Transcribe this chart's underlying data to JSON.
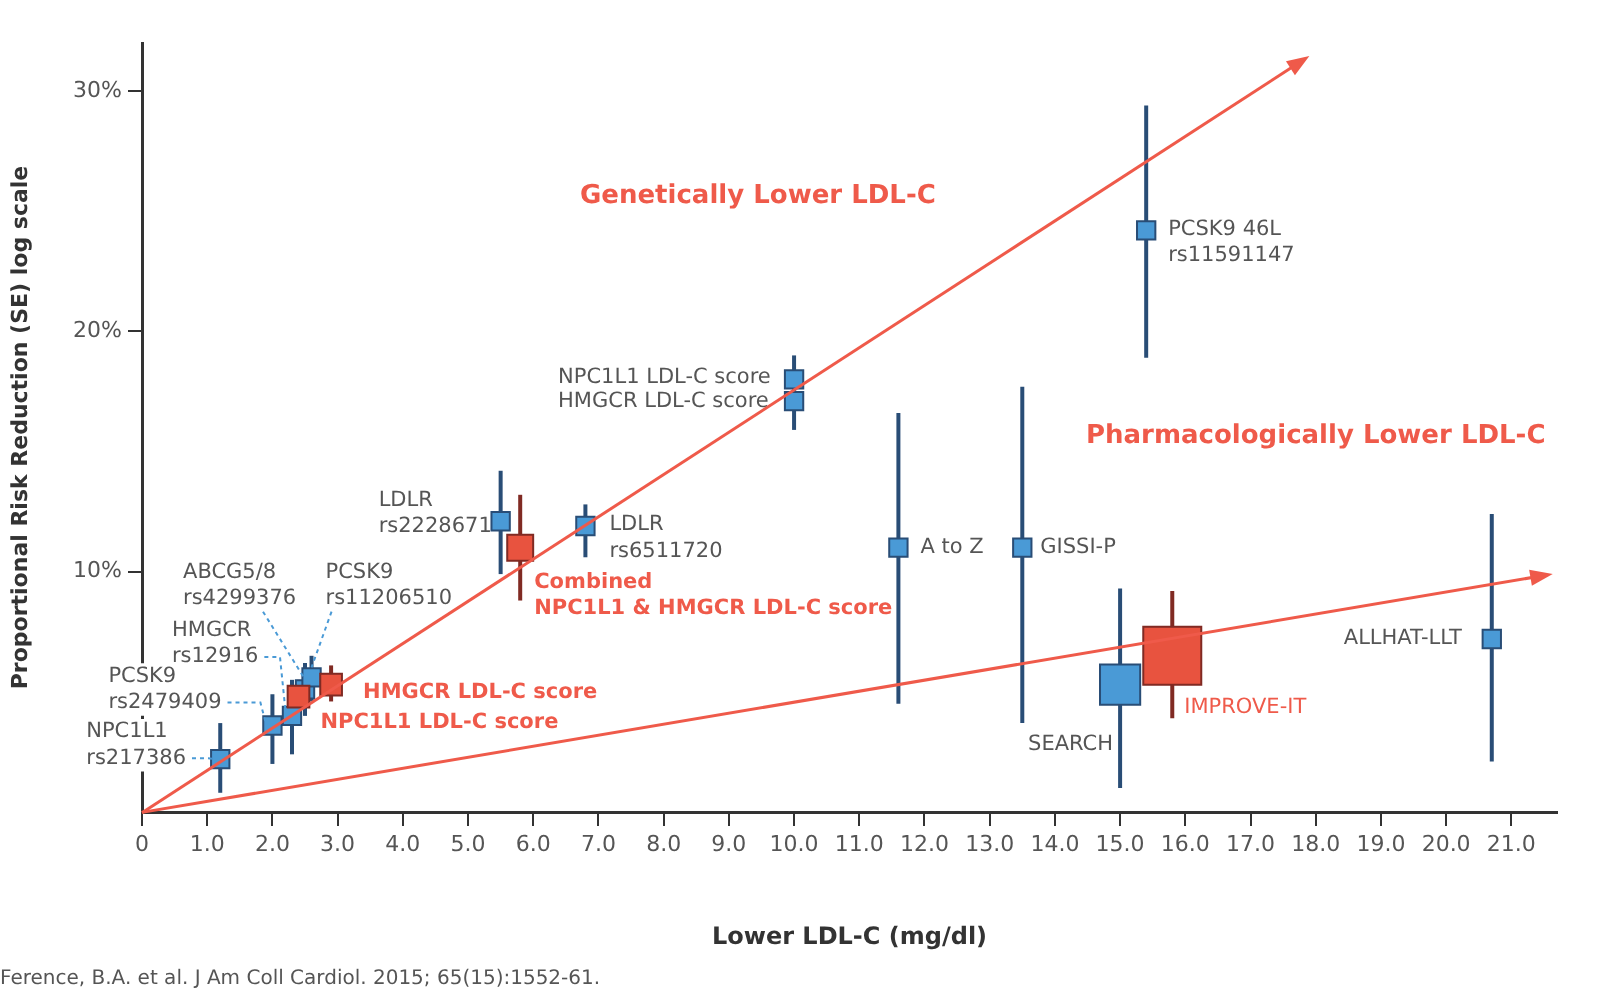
{
  "chart_data": {
    "type": "scatter",
    "xlabel": "Lower LDL-C (mg/dl)",
    "ylabel": "Proportional Risk Reduction (SE) log scale",
    "xlim": [
      0,
      21.7
    ],
    "ylim": [
      0,
      32
    ],
    "xticks": [
      0,
      {
        "value": 1,
        "label": "1.0"
      },
      {
        "value": 2,
        "label": "2.0"
      },
      {
        "value": 3,
        "label": "3.0"
      },
      {
        "value": 4,
        "label": "4.0"
      },
      {
        "value": 5,
        "label": "5.0"
      },
      {
        "value": 6,
        "label": "6.0"
      },
      {
        "value": 7,
        "label": "7.0"
      },
      {
        "value": 8,
        "label": "8.0"
      },
      {
        "value": 9,
        "label": "9.0"
      },
      {
        "value": 10,
        "label": "10.0"
      },
      {
        "value": 11,
        "label": "11.0"
      },
      {
        "value": 12,
        "label": "12.0"
      },
      {
        "value": 13,
        "label": "13.0"
      },
      {
        "value": 14,
        "label": "14.0"
      },
      {
        "value": 15,
        "label": "15.0"
      },
      {
        "value": 16,
        "label": "16.0"
      },
      {
        "value": 17,
        "label": "17.0"
      },
      {
        "value": 18,
        "label": "18.0"
      },
      {
        "value": 19,
        "label": "19.0"
      },
      {
        "value": 20,
        "label": "20.0"
      },
      {
        "value": 21,
        "label": "21.0"
      }
    ],
    "yticks": [
      {
        "value": 10,
        "label": "10%"
      },
      {
        "value": 20,
        "label": "20%"
      },
      {
        "value": 30,
        "label": "30%"
      }
    ],
    "grid": false,
    "legend": false,
    "marker": "square",
    "series": [
      {
        "color": "#4a9ad6",
        "x": [
          1.2,
          2.0,
          2.3,
          2.5,
          2.6,
          5.5,
          6.8,
          10.0,
          10.0,
          11.6,
          13.5,
          15.4,
          15.0,
          20.7
        ],
        "values": [
          2.2,
          3.6,
          4.0,
          5.1,
          5.6,
          12.1,
          11.9,
          18.0,
          17.1,
          11.0,
          11.0,
          24.2,
          5.3,
          7.2
        ],
        "errors": [
          [
            0.8,
            3.7
          ],
          [
            2.0,
            4.9
          ],
          [
            2.4,
            5.5
          ],
          [
            4.0,
            6.2
          ],
          [
            4.6,
            6.5
          ],
          [
            9.9,
            14.2
          ],
          [
            10.6,
            12.8
          ],
          [
            17.3,
            19.0
          ],
          [
            15.9,
            17.8
          ],
          [
            4.5,
            16.6
          ],
          [
            3.7,
            17.7
          ],
          [
            18.9,
            29.4
          ],
          [
            1.0,
            9.3
          ],
          [
            2.1,
            12.4
          ]
        ],
        "sizes": [
          0.1,
          0.1,
          0.1,
          0.1,
          0.1,
          0.1,
          0.1,
          0.1,
          0.1,
          0.1,
          0.1,
          0.1,
          0.48,
          0.1
        ]
      },
      {
        "color": "#e8533f",
        "x": [
          2.4,
          2.9,
          5.8,
          15.8
        ],
        "values": [
          4.8,
          5.3,
          11.0,
          6.5
        ],
        "errors": [
          [
            4.4,
            5.5
          ],
          [
            4.6,
            6.1
          ],
          [
            8.8,
            13.2
          ],
          [
            3.9,
            9.2
          ]
        ],
        "sizes": [
          0.14,
          0.14,
          0.2,
          1
        ]
      }
    ],
    "annotations": [
      "Genetically Lower LDL-C",
      "Pharmacologically Lower LDL-C",
      {
        "text": "PCSK9 46L\nrs11591147",
        "x": 15.4,
        "y": 24.2
      },
      {
        "text": "NPC1L1 LDL-C score",
        "x": 10.0,
        "y": 18.0
      },
      {
        "text": "HMGCR LDL-C score",
        "x": 10.0,
        "y": 17.1
      },
      {
        "text": "LDLR\nrs2228671",
        "x": 5.5,
        "y": 12.1
      },
      {
        "text": "LDLR\nrs6511720",
        "x": 6.8,
        "y": 11.9
      },
      {
        "text": "Combined\nNPC1L1 & HMGCR LDL-C score",
        "x": 5.8,
        "y": 11.0
      },
      {
        "text": "A to Z",
        "x": 11.6,
        "y": 11.0
      },
      {
        "text": "GISSI-P",
        "x": 13.5,
        "y": 11.0
      },
      {
        "text": "ALLHAT-LLT",
        "x": 20.7,
        "y": 7.2
      },
      {
        "text": "SEARCH",
        "x": 15.0,
        "y": 5.3
      },
      {
        "text": "IMPROVE-IT",
        "x": 15.8,
        "y": 6.5
      },
      {
        "text": "HMGCR LDL-C score",
        "x": 2.9,
        "y": 5.3
      },
      {
        "text": "NPC1L1 LDL-C score",
        "x": 2.4,
        "y": 4.8
      },
      {
        "text": "PCSK9\nrs11206510",
        "x": 2.6,
        "y": 5.6
      },
      {
        "text": "ABCG5/8\nrs4299376",
        "x": 2.5,
        "y": 5.1
      },
      {
        "text": "HMGCR\nrs12916",
        "x": 2.3,
        "y": 4.0
      },
      {
        "text": "PCSK9\nrs2479409",
        "x": 2.0,
        "y": 3.6
      },
      {
        "text": "NPC1L1\nrs217386",
        "x": 1.2,
        "y": 2.2
      },
      "Ference, B.A. et al. J Am Coll Cardiol. 2015; 65(15):1552-61."
    ]
  }
}
